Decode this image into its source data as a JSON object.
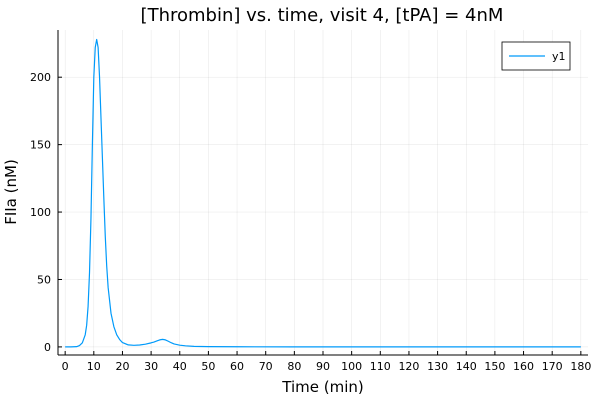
{
  "chart_data": {
    "type": "line",
    "title": "[Thrombin] vs. time, visit 4, [tPA] = 4nM",
    "xlabel": "Time (min)",
    "ylabel": "FIIa (nM)",
    "xlim": [
      -2.5,
      182.5
    ],
    "ylim": [
      -6,
      235
    ],
    "xticks": [
      0,
      10,
      20,
      30,
      40,
      50,
      60,
      70,
      80,
      90,
      100,
      110,
      120,
      130,
      140,
      150,
      160,
      170,
      180
    ],
    "yticks": [
      0,
      50,
      100,
      150,
      200
    ],
    "grid": true,
    "legend_position": "top-right",
    "series": [
      {
        "name": "y1",
        "color": "#009AFA",
        "x": [
          0,
          2,
          4,
          5,
          6,
          7,
          7.5,
          8,
          8.5,
          9,
          9.5,
          10,
          10.5,
          11,
          11.5,
          12,
          12.5,
          13,
          13.5,
          14,
          14.5,
          15,
          16,
          17,
          18,
          19,
          20,
          22,
          24,
          26,
          28,
          30,
          31,
          32,
          33,
          34,
          35,
          36,
          37,
          38,
          40,
          42,
          45,
          50,
          60,
          80,
          100,
          130,
          150,
          180
        ],
        "y": [
          0,
          0,
          0.2,
          1,
          3,
          9,
          16,
          30,
          55,
          95,
          150,
          200,
          222,
          228,
          222,
          200,
          170,
          140,
          110,
          82,
          60,
          44,
          25,
          15,
          9,
          5.5,
          3.2,
          1.5,
          1.2,
          1.4,
          2,
          3,
          3.6,
          4.4,
          5.2,
          5.6,
          5.2,
          4.2,
          3.1,
          2.2,
          1.3,
          0.8,
          0.4,
          0.2,
          0.1,
          0.05,
          0,
          0,
          0,
          0
        ]
      }
    ]
  }
}
